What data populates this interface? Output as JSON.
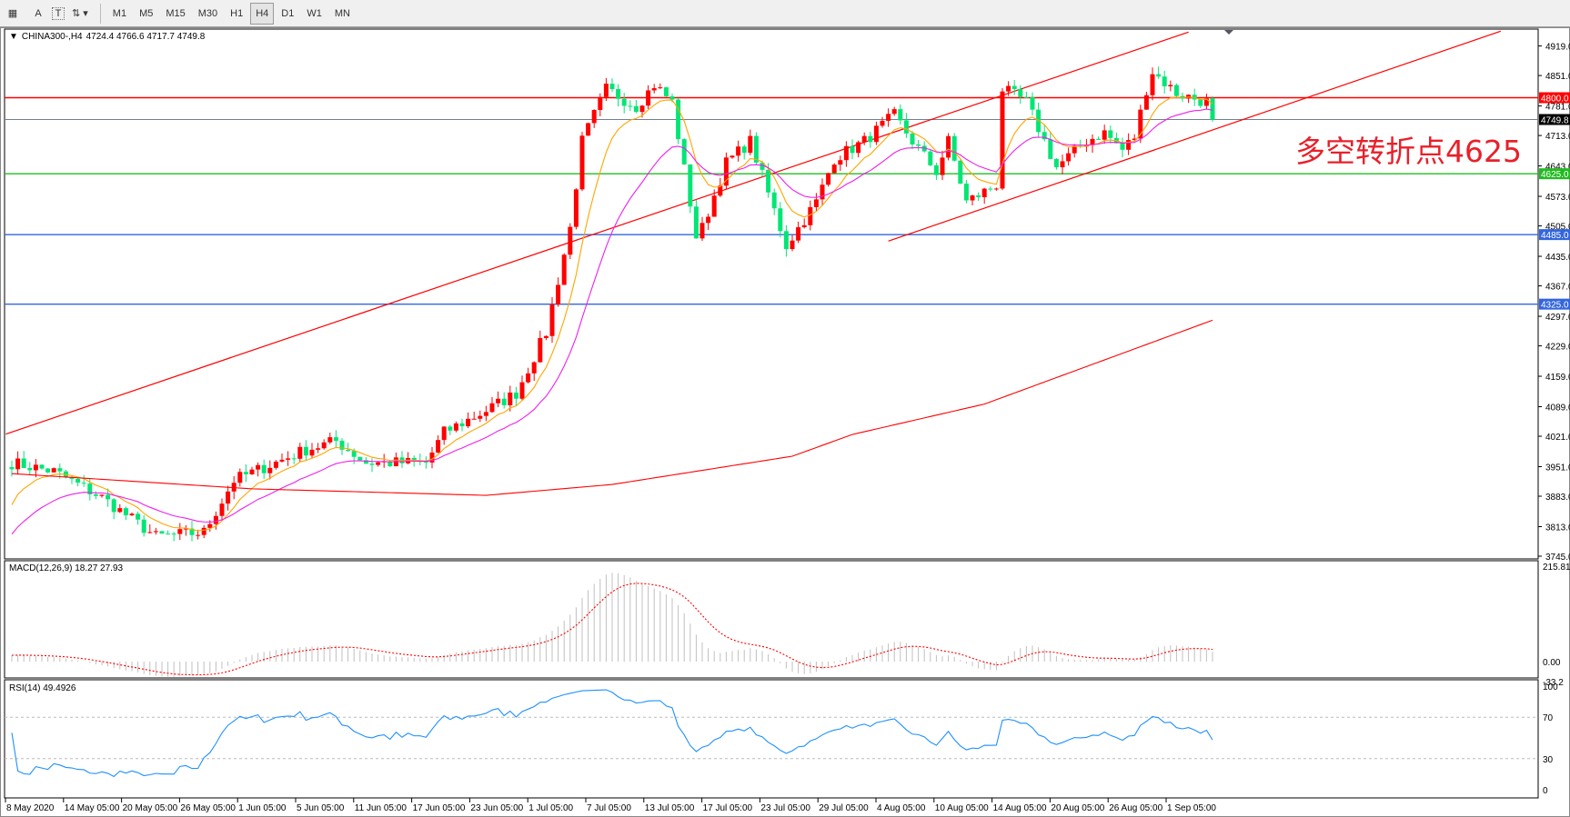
{
  "toolbar": {
    "tools": [
      {
        "icon": "grid-f-icon"
      },
      {
        "icon": "text-a-icon",
        "label": "A"
      },
      {
        "icon": "text-box-icon",
        "label": "T"
      },
      {
        "icon": "arrows-icon"
      }
    ],
    "timeframes": [
      "M1",
      "M5",
      "M15",
      "M30",
      "H1",
      "H4",
      "D1",
      "W1",
      "MN"
    ],
    "active": "H4"
  },
  "header": {
    "symbol": "CHINA300-,H4",
    "ohlc": "4724.4 4766.6 4717.7 4749.8"
  },
  "annotation": "多空转折点4625",
  "macd": {
    "label": "MACD(12,26,9) 18.27 27.93",
    "axis": [
      "215.81",
      "0.00",
      "-33.2"
    ]
  },
  "rsi": {
    "label": "RSI(14) 49.4926",
    "axis": [
      "100",
      "70",
      "30",
      "0"
    ]
  },
  "colors": {
    "up": "#ff0000",
    "down": "#00e676",
    "ma_fast": "#ffa500",
    "ma_mid": "#ee20ee",
    "ma_slow": "#ff0000",
    "macd_hist": "#c0c0c0",
    "macd_signal": "#ff0000",
    "rsi": "#1e90ff"
  },
  "chart_data": {
    "type": "candlestick",
    "price_axis": [
      "4919.0",
      "4851.0",
      "4781.0",
      "4713.0",
      "4643.0",
      "4573.0",
      "4505.0",
      "4435.0",
      "4367.0",
      "4297.0",
      "4229.0",
      "4159.0",
      "4089.0",
      "4021.0",
      "3951.0",
      "3883.0",
      "3813.0",
      "3745.0"
    ],
    "ylim": [
      3745,
      4919
    ],
    "date_axis": [
      "8 May 2020",
      "14 May 05:00",
      "20 May 05:00",
      "26 May 05:00",
      "1 Jun 05:00",
      "5 Jun 05:00",
      "11 Jun 05:00",
      "17 Jun 05:00",
      "23 Jun 05:00",
      "1 Jul 05:00",
      "7 Jul 05:00",
      "13 Jul 05:00",
      "17 Jul 05:00",
      "23 Jul 05:00",
      "29 Jul 05:00",
      "4 Aug 05:00",
      "10 Aug 05:00",
      "14 Aug 05:00",
      "20 Aug 05:00",
      "26 Aug 05:00",
      "1 Sep 05:00"
    ],
    "bars": 201,
    "close_path": [
      [
        0,
        3960
      ],
      [
        7,
        3940
      ],
      [
        15,
        3880
      ],
      [
        24,
        3790
      ],
      [
        32,
        3800
      ],
      [
        37,
        3920
      ],
      [
        49,
        3990
      ],
      [
        54,
        4010
      ],
      [
        59,
        3960
      ],
      [
        69,
        3960
      ],
      [
        72,
        4030
      ],
      [
        79,
        4080
      ],
      [
        84,
        4120
      ],
      [
        89,
        4260
      ],
      [
        91,
        4380
      ],
      [
        93,
        4500
      ],
      [
        95,
        4700
      ],
      [
        99,
        4820
      ],
      [
        104,
        4780
      ],
      [
        107,
        4830
      ],
      [
        110,
        4790
      ],
      [
        114,
        4480
      ],
      [
        115,
        4500
      ],
      [
        119,
        4650
      ],
      [
        123,
        4700
      ],
      [
        125,
        4620
      ],
      [
        129,
        4460
      ],
      [
        134,
        4560
      ],
      [
        137,
        4660
      ],
      [
        142,
        4700
      ],
      [
        147,
        4760
      ],
      [
        150,
        4700
      ],
      [
        154,
        4630
      ],
      [
        156,
        4700
      ],
      [
        159,
        4560
      ],
      [
        164,
        4600
      ],
      [
        165,
        4820
      ],
      [
        169,
        4790
      ],
      [
        174,
        4640
      ],
      [
        179,
        4700
      ],
      [
        182,
        4720
      ],
      [
        185,
        4680
      ],
      [
        187,
        4710
      ],
      [
        189,
        4820
      ],
      [
        190,
        4860
      ],
      [
        194,
        4810
      ],
      [
        199,
        4790
      ],
      [
        200,
        4749.8
      ]
    ],
    "ma_slow_path": [
      [
        0,
        3935
      ],
      [
        40,
        3900
      ],
      [
        79,
        3885
      ],
      [
        100,
        3910
      ],
      [
        130,
        3975
      ],
      [
        140,
        4025
      ],
      [
        162,
        4095
      ],
      [
        200,
        4288
      ]
    ],
    "hlines": [
      {
        "price": 4800.0,
        "label": "4800.0",
        "color": "#ff0000"
      },
      {
        "price": 4749.8,
        "label": "4749.8",
        "color": "#708090"
      },
      {
        "price": 4625.0,
        "label": "4625.0",
        "color": "#22bb22"
      },
      {
        "price": 4485.0,
        "label": "4485.0",
        "color": "#3366dd"
      },
      {
        "price": 4325.0,
        "label": "4325.0",
        "color": "#3366dd"
      }
    ],
    "trendlines": [
      [
        [
          -1,
          4026
        ],
        [
          196,
          4951
        ]
      ],
      [
        [
          146,
          4470
        ],
        [
          248,
          4953
        ]
      ]
    ],
    "rsi_levels": [
      70,
      30
    ],
    "macd_range": [
      -33.2,
      215.81
    ]
  }
}
